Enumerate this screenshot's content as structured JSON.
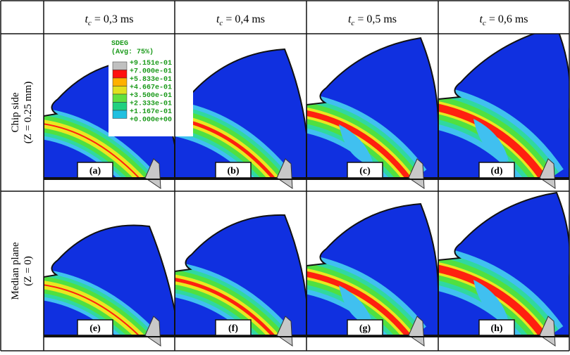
{
  "table": {
    "columns": [
      {
        "symbol": "t",
        "subscript": "c",
        "text": " = 0,3 ms"
      },
      {
        "symbol": "t",
        "subscript": "c",
        "text": " = 0,4 ms"
      },
      {
        "symbol": "t",
        "subscript": "c",
        "text": " = 0,5 ms"
      },
      {
        "symbol": "t",
        "subscript": "c",
        "text": " = 0,6 ms"
      }
    ],
    "rows": [
      {
        "label": "Chip side",
        "sublabel": "(Z = 0.25 mm)",
        "panels": [
          "(a)",
          "(b)",
          "(c)",
          "(d)"
        ]
      },
      {
        "label": "Median plane",
        "sublabel": "(Z = 0)",
        "panels": [
          "(e)",
          "(f)",
          "(g)",
          "(h)"
        ]
      }
    ]
  },
  "legend": {
    "title": "SDEG",
    "subtitle": "(Avg: 75%)",
    "labels": [
      "+9.151e-01",
      "+7.000e-01",
      "+5.833e-01",
      "+4.667e-01",
      "+3.500e-01",
      "+2.333e-01",
      "+1.167e-01",
      "+0.000e+00"
    ]
  }
}
